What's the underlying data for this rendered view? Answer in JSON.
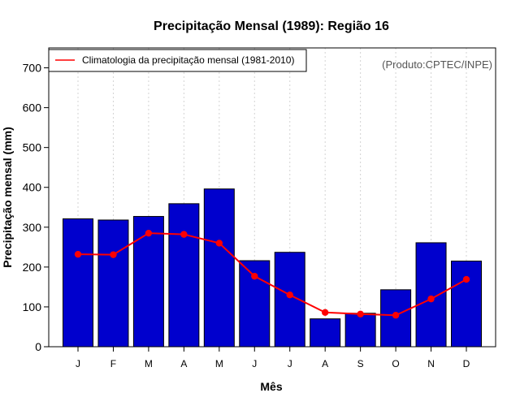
{
  "chart_data": {
    "type": "bar",
    "title": "Precipitação Mensal (1989): Região 16",
    "xlabel": "Mês",
    "ylabel": "Precipitação mensal (mm)",
    "ylim": [
      0,
      750
    ],
    "yticks": [
      0,
      100,
      200,
      300,
      400,
      500,
      600,
      700
    ],
    "grid": "vertical dotted",
    "categories": [
      "J",
      "F",
      "M",
      "A",
      "M",
      "J",
      "J",
      "A",
      "S",
      "O",
      "N",
      "D"
    ],
    "series": [
      {
        "name": "Precipitação mensal 1989",
        "type": "bar",
        "color": "#0000CD",
        "values": [
          321,
          318,
          327,
          359,
          396,
          216,
          237,
          70,
          84,
          143,
          261,
          215
        ]
      },
      {
        "name": "Climatologia da precipitação mensal (1981-2010)",
        "type": "line",
        "color": "#FF0000",
        "values": [
          232,
          231,
          285,
          282,
          260,
          177,
          130,
          86,
          82,
          79,
          120,
          169
        ]
      }
    ],
    "legend": {
      "position": "top-left",
      "label": "Climatologia da precipitação mensal (1981-2010)"
    },
    "annotation": "(Produto:CPTEC/INPE)"
  }
}
